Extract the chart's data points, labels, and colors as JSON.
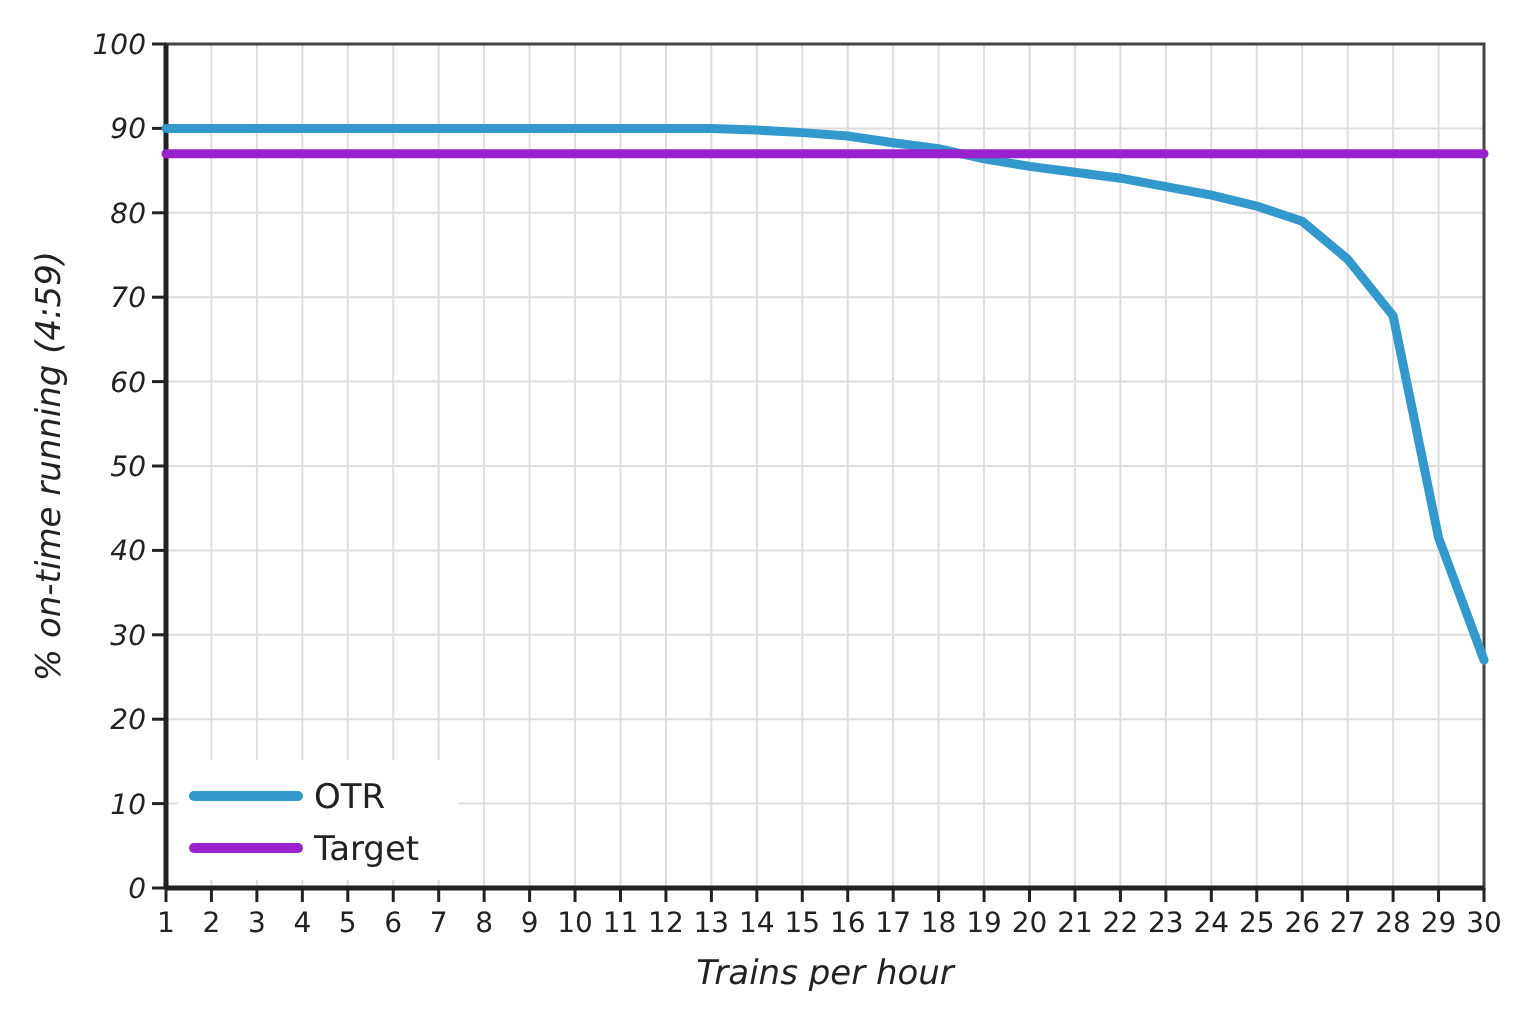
{
  "chart_data": {
    "type": "line",
    "xlabel": "Trains per hour",
    "ylabel": "% on-time running (4:59)",
    "x": [
      1,
      2,
      3,
      4,
      5,
      6,
      7,
      8,
      9,
      10,
      11,
      12,
      13,
      14,
      15,
      16,
      17,
      18,
      19,
      20,
      21,
      22,
      23,
      24,
      25,
      26,
      27,
      28,
      29,
      30
    ],
    "series": [
      {
        "name": "OTR",
        "color": "#3399cc",
        "values": [
          90,
          90,
          90,
          90,
          90,
          90,
          90,
          90,
          90,
          90,
          90,
          90,
          90,
          89.8,
          89.5,
          89.1,
          88.3,
          87.6,
          86.4,
          85.5,
          84.8,
          84.1,
          83.1,
          82.1,
          80.8,
          79,
          74.5,
          67.8,
          41.5,
          27
        ]
      },
      {
        "name": "Target",
        "color": "#9922cc",
        "values": [
          87,
          87,
          87,
          87,
          87,
          87,
          87,
          87,
          87,
          87,
          87,
          87,
          87,
          87,
          87,
          87,
          87,
          87,
          87,
          87,
          87,
          87,
          87,
          87,
          87,
          87,
          87,
          87,
          87,
          87
        ]
      }
    ],
    "xlim": [
      1,
      30
    ],
    "xticks": [
      1,
      2,
      3,
      4,
      5,
      6,
      7,
      8,
      9,
      10,
      11,
      12,
      13,
      14,
      15,
      16,
      17,
      18,
      19,
      20,
      21,
      22,
      23,
      24,
      25,
      26,
      27,
      28,
      29,
      30
    ],
    "ylim": [
      0,
      100
    ],
    "yticks": [
      0,
      10,
      20,
      30,
      40,
      50,
      60,
      70,
      80,
      90,
      100
    ],
    "grid": true,
    "legend": "bottom left",
    "marker": "none",
    "line_style": "solid"
  }
}
